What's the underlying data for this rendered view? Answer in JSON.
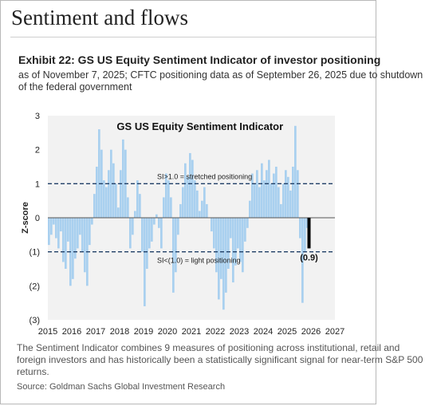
{
  "header": {
    "section_title": "Sentiment and flows",
    "exhibit_title": "Exhibit 22: GS US Equity Sentiment Indicator of investor positioning",
    "exhibit_subtitle": "as of November 7, 2025; CFTC positioning data as of September 26, 2025 due to shutdown of the federal government"
  },
  "chart_data": {
    "type": "area",
    "title": "GS US Equity Sentiment Indicator",
    "ylabel": "Z-score",
    "xlabel": "",
    "xlim": [
      2015,
      2027
    ],
    "ylim": [
      -3,
      3
    ],
    "x_ticks": [
      2015,
      2016,
      2017,
      2018,
      2019,
      2020,
      2021,
      2022,
      2023,
      2024,
      2025,
      2026,
      2027
    ],
    "x_tick_labels": [
      "2015",
      "2016",
      "2017",
      "2018",
      "2019",
      "2020",
      "2021",
      "2022",
      "2023",
      "2024",
      "2025",
      "2026",
      "2027"
    ],
    "y_ticks": [
      3,
      2,
      1,
      0,
      -1,
      -2,
      -3
    ],
    "y_tick_labels": [
      "3",
      "2",
      "1",
      "0",
      "(1)",
      "(2)",
      "(3)"
    ],
    "grid": false,
    "colors": {
      "series": "#a9d0ef",
      "latest": "#000000",
      "threshold": "#1f3e66",
      "plot_bg": "#f2f2f2"
    },
    "series": [
      {
        "x": [
          2015.0,
          2015.1,
          2015.2,
          2015.3,
          2015.4,
          2015.5,
          2015.6,
          2015.7,
          2015.8,
          2015.9,
          2016.0,
          2016.1,
          2016.2,
          2016.3,
          2016.4,
          2016.5,
          2016.6,
          2016.7,
          2016.8,
          2016.9,
          2017.0,
          2017.1,
          2017.2,
          2017.3,
          2017.4,
          2017.5,
          2017.6,
          2017.7,
          2017.8,
          2017.9,
          2018.0,
          2018.1,
          2018.2,
          2018.3,
          2018.4,
          2018.5,
          2018.6,
          2018.7,
          2018.8,
          2018.9,
          2019.0,
          2019.1,
          2019.2,
          2019.3,
          2019.4,
          2019.5,
          2019.6,
          2019.7,
          2019.8,
          2019.9,
          2020.0,
          2020.1,
          2020.2,
          2020.3,
          2020.4,
          2020.5,
          2020.6,
          2020.7,
          2020.8,
          2020.9,
          2021.0,
          2021.1,
          2021.2,
          2021.3,
          2021.4,
          2021.5,
          2021.6,
          2021.7,
          2021.8,
          2021.9,
          2022.0,
          2022.1,
          2022.2,
          2022.3,
          2022.4,
          2022.5,
          2022.6,
          2022.7,
          2022.8,
          2022.9,
          2023.0,
          2023.1,
          2023.2,
          2023.3,
          2023.4,
          2023.5,
          2023.6,
          2023.7,
          2023.8,
          2023.9,
          2024.0,
          2024.1,
          2024.2,
          2024.3,
          2024.4,
          2024.5,
          2024.6,
          2024.7,
          2024.8,
          2024.9,
          2025.0,
          2025.1,
          2025.2,
          2025.3,
          2025.4,
          2025.5,
          2025.6,
          2025.7,
          2025.8
        ],
        "values": [
          -0.8,
          -0.5,
          -0.2,
          -0.6,
          -0.9,
          -0.4,
          -1.3,
          -1.5,
          -0.7,
          -2.0,
          -1.8,
          -1.2,
          -0.9,
          -0.5,
          -1.0,
          -1.6,
          -2.0,
          -0.8,
          -0.2,
          0.7,
          1.5,
          2.6,
          2.0,
          1.1,
          0.9,
          1.4,
          2.0,
          1.6,
          1.0,
          0.3,
          1.4,
          2.3,
          2.0,
          0.6,
          -0.9,
          -0.5,
          0.2,
          1.1,
          0.7,
          -1.0,
          -2.6,
          -1.5,
          -0.9,
          -0.7,
          -0.2,
          0.1,
          -0.3,
          -0.9,
          0.6,
          1.3,
          1.1,
          0.6,
          -2.2,
          -1.6,
          -0.5,
          0.4,
          0.9,
          1.6,
          1.2,
          1.9,
          1.7,
          1.1,
          0.8,
          0.2,
          0.5,
          0.9,
          0.4,
          0.0,
          -0.4,
          -0.9,
          -1.6,
          -2.4,
          -1.8,
          -2.7,
          -2.2,
          -1.5,
          -0.6,
          -1.9,
          -1.4,
          -0.9,
          -1.3,
          -1.6,
          -0.7,
          -0.3,
          0.5,
          1.3,
          1.0,
          1.4,
          0.9,
          1.6,
          1.1,
          1.4,
          1.7,
          1.0,
          1.3,
          1.5,
          0.9,
          0.4,
          1.0,
          1.4,
          1.2,
          0.8,
          1.5,
          2.7,
          1.4,
          -0.6,
          -2.5,
          -1.0,
          -0.3
        ]
      }
    ],
    "latest_value": {
      "x": 2025.85,
      "value": -0.9,
      "label": "(0.9)"
    },
    "thresholds": [
      {
        "value": 1.0,
        "label": "SI>1.0 = stretched positioning"
      },
      {
        "value": -1.0,
        "label": "SI<(1.0) = light positioning"
      }
    ]
  },
  "footer": {
    "footnote": "The Sentiment Indicator combines 9 measures of positioning across institutional, retail and foreign investors and has historically been a statistically significant signal for near-term S&P 500 returns.",
    "source": "Source: Goldman Sachs Global Investment Research"
  }
}
